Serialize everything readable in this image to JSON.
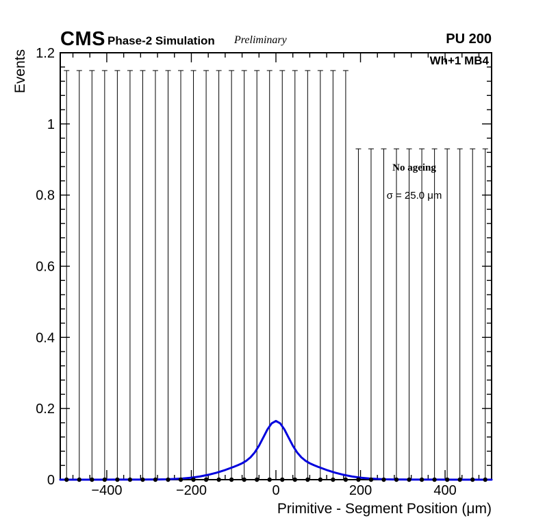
{
  "header": {
    "experiment": "CMS",
    "context": "Phase-2 Simulation",
    "status": "Preliminary",
    "pileup": "PU 200"
  },
  "plot": {
    "region_label": "Wh+1 MB4",
    "legend": {
      "line1": "No ageing",
      "line2": "σ = 25.0 μm"
    },
    "xlabel": "Primitive - Segment Position (μm)",
    "ylabel": "Events"
  },
  "chart_data": {
    "type": "scatter",
    "title": "",
    "xlabel": "Primitive - Segment Position (μm)",
    "ylabel": "Events",
    "xlim": [
      -510,
      510
    ],
    "ylim": [
      0,
      1.2
    ],
    "grid": false,
    "x_tick_values": [
      -400,
      -200,
      0,
      200,
      400
    ],
    "x_tick_labels": [
      "−400",
      "−200",
      "0",
      "200",
      "400"
    ],
    "x_minor_step": 40,
    "y_tick_values": [
      0,
      0.2,
      0.4,
      0.6,
      0.8,
      1.0,
      1.2
    ],
    "y_tick_labels": [
      "0",
      "0.2",
      "0.4",
      "0.6",
      "0.8",
      "1",
      "1.2"
    ],
    "y_minor_step": 0.04,
    "frame_color": "#000000",
    "background": "#ffffff",
    "data_points": {
      "marker": "filled-circle",
      "marker_color": "#000000",
      "x": [
        -495,
        -465,
        -435,
        -405,
        -375,
        -345,
        -315,
        -285,
        -255,
        -225,
        -195,
        -165,
        -135,
        -105,
        -75,
        -45,
        -15,
        15,
        45,
        75,
        105,
        135,
        165,
        195,
        225,
        255,
        285,
        315,
        345,
        375,
        405,
        435,
        465,
        495
      ],
      "y": [
        0,
        0,
        0,
        0,
        0,
        0,
        0,
        0,
        0,
        0,
        0,
        0,
        0,
        0,
        0,
        0,
        0,
        0,
        0,
        0,
        0,
        0,
        0,
        0,
        0,
        0,
        0,
        0,
        0,
        0,
        0,
        0,
        0,
        0
      ],
      "error_bar_top": 1.15,
      "legend_covered": {
        "x_min": 190,
        "x_max": 510,
        "visible_top": 0.93
      }
    },
    "fit_curve": {
      "color": "#0000dd",
      "peak_x": 0,
      "peak_y": 0.165,
      "points": [
        [
          -510,
          0
        ],
        [
          -460,
          0
        ],
        [
          -420,
          0
        ],
        [
          -380,
          0.0001
        ],
        [
          -350,
          0.0001
        ],
        [
          -320,
          0.0002
        ],
        [
          -300,
          0.0003
        ],
        [
          -280,
          0.0005
        ],
        [
          -260,
          0.001
        ],
        [
          -240,
          0.0019
        ],
        [
          -220,
          0.0033
        ],
        [
          -200,
          0.0056
        ],
        [
          -180,
          0.0089
        ],
        [
          -160,
          0.0136
        ],
        [
          -140,
          0.0197
        ],
        [
          -120,
          0.0272
        ],
        [
          -100,
          0.0358
        ],
        [
          -90,
          0.0406
        ],
        [
          -80,
          0.0461
        ],
        [
          -70,
          0.0531
        ],
        [
          -60,
          0.0628
        ],
        [
          -50,
          0.0767
        ],
        [
          -40,
          0.0955
        ],
        [
          -30,
          0.1182
        ],
        [
          -20,
          0.1411
        ],
        [
          -10,
          0.1584
        ],
        [
          0,
          0.165
        ],
        [
          10,
          0.1584
        ],
        [
          20,
          0.1411
        ],
        [
          30,
          0.1182
        ],
        [
          40,
          0.0955
        ],
        [
          50,
          0.0767
        ],
        [
          60,
          0.0628
        ],
        [
          70,
          0.0531
        ],
        [
          80,
          0.0461
        ],
        [
          90,
          0.0406
        ],
        [
          100,
          0.0358
        ],
        [
          120,
          0.0272
        ],
        [
          140,
          0.0197
        ],
        [
          160,
          0.0136
        ],
        [
          180,
          0.0089
        ],
        [
          200,
          0.0056
        ],
        [
          220,
          0.0033
        ],
        [
          240,
          0.0019
        ],
        [
          260,
          0.001
        ],
        [
          280,
          0.0005
        ],
        [
          300,
          0.0003
        ],
        [
          320,
          0.0002
        ],
        [
          350,
          0.0001
        ],
        [
          380,
          0.0001
        ],
        [
          420,
          0
        ],
        [
          460,
          0
        ],
        [
          510,
          0
        ]
      ]
    }
  }
}
